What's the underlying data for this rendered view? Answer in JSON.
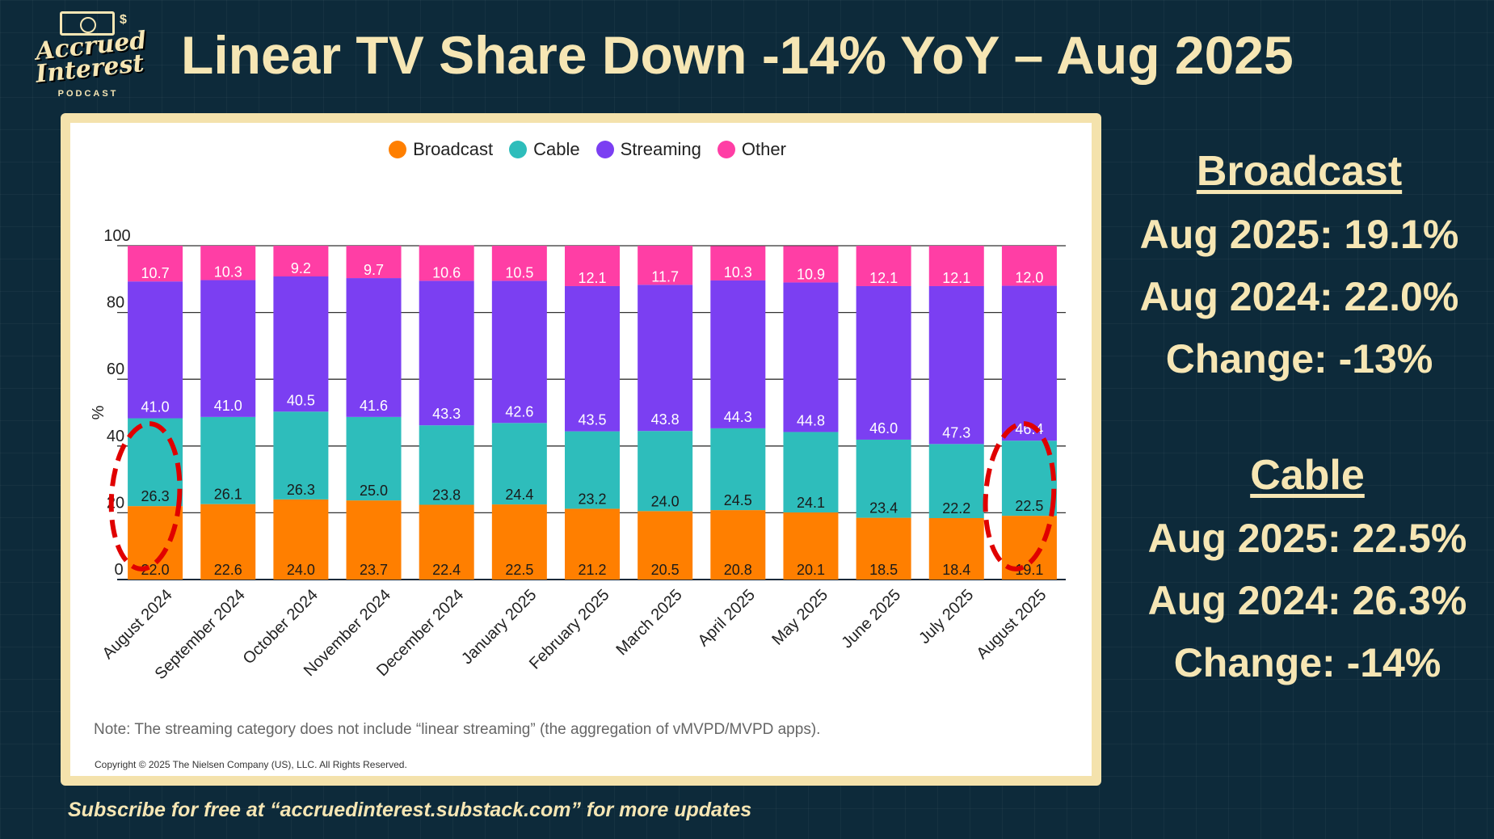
{
  "logo": {
    "line1": "Accrued",
    "line2": "Interest",
    "line3": "PODCAST"
  },
  "title": "Linear TV Share Down -14% YoY – Aug 2025",
  "chart_data": {
    "type": "bar",
    "stacked": true,
    "categories": [
      "August 2024",
      "September 2024",
      "October 2024",
      "November 2024",
      "December 2024",
      "January 2025",
      "February 2025",
      "March 2025",
      "April 2025",
      "May 2025",
      "June 2025",
      "July 2025",
      "August 2025"
    ],
    "series": [
      {
        "name": "Broadcast",
        "color": "#ff7f00",
        "values": [
          22.0,
          22.6,
          24.0,
          23.7,
          22.4,
          22.5,
          21.2,
          20.5,
          20.8,
          20.1,
          18.5,
          18.4,
          19.1
        ]
      },
      {
        "name": "Cable",
        "color": "#2ebdbb",
        "values": [
          26.3,
          26.1,
          26.3,
          25.0,
          23.8,
          24.4,
          23.2,
          24.0,
          24.5,
          24.1,
          23.4,
          22.2,
          22.5
        ]
      },
      {
        "name": "Streaming",
        "color": "#7b3ff2",
        "values": [
          41.0,
          41.0,
          40.5,
          41.6,
          43.3,
          42.6,
          43.5,
          43.8,
          44.3,
          44.8,
          46.0,
          47.3,
          46.4
        ]
      },
      {
        "name": "Other",
        "color": "#ff3ea5",
        "values": [
          10.7,
          10.3,
          9.2,
          9.7,
          10.6,
          10.5,
          12.1,
          11.7,
          10.3,
          10.9,
          12.1,
          12.1,
          12.0
        ]
      }
    ],
    "ylabel": "%",
    "ylim": [
      0,
      100
    ],
    "yticks": [
      0,
      20,
      40,
      60,
      80,
      100
    ],
    "grid": true,
    "legend": "top-center",
    "highlighted_categories": [
      "August 2024",
      "August 2025"
    ],
    "note": "Note: The streaming category does not include “linear streaming” (the aggregation of vMVPD/MVPD apps).",
    "copyright": "Copyright © 2025 The Nielsen Company (US), LLC. All Rights Reserved."
  },
  "broadcast": {
    "heading": "Broadcast",
    "aug2025": "Aug 2025: 19.1%",
    "aug2024": "Aug 2024: 22.0%",
    "change": "Change: -13%"
  },
  "cable": {
    "heading": "Cable",
    "aug2025": "Aug 2025: 22.5%",
    "aug2024": "Aug 2024: 26.3%",
    "change": "Change: -14%"
  },
  "footer": "Subscribe for free at “accruedinterest.substack.com” for more updates",
  "colors": {
    "background": "#0d2a3a",
    "accent": "#f6e6b4",
    "highlight": "#e00000"
  }
}
